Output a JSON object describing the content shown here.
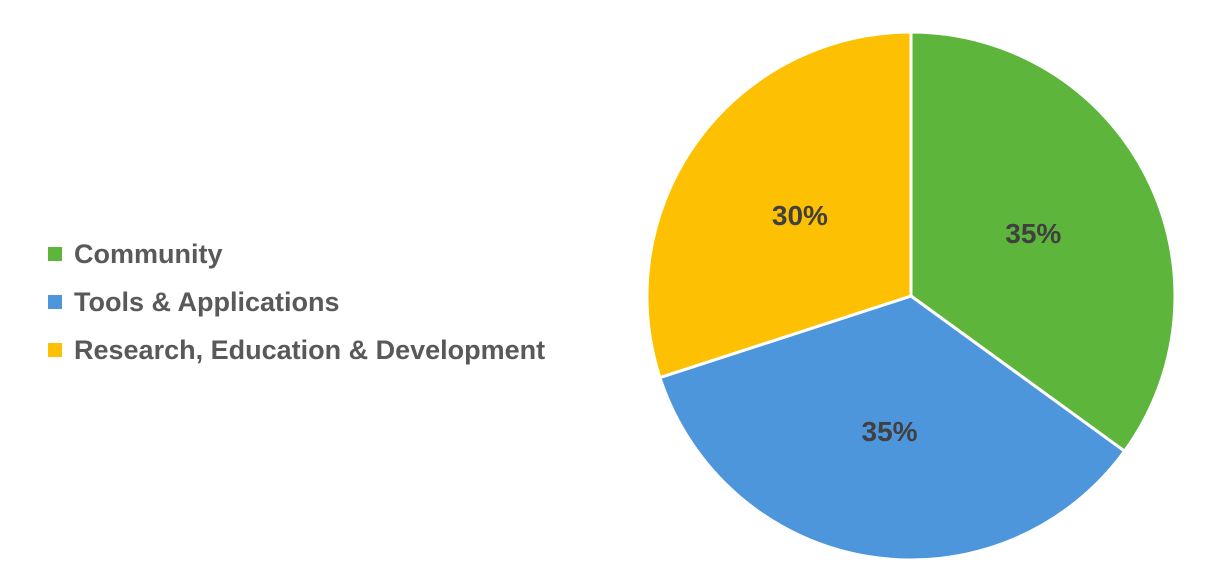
{
  "chart_data": {
    "type": "pie",
    "title": "",
    "legend_position": "left",
    "start_angle_deg": 0,
    "direction": "clockwise",
    "slices": [
      {
        "name": "Community",
        "value": 35,
        "label": "35%",
        "color": "#5DB53B"
      },
      {
        "name": "Tools & Applications",
        "value": 35,
        "label": "35%",
        "color": "#4E96DC"
      },
      {
        "name": "Research, Education & Development",
        "value": 30,
        "label": "30%",
        "color": "#FEC003"
      }
    ]
  }
}
